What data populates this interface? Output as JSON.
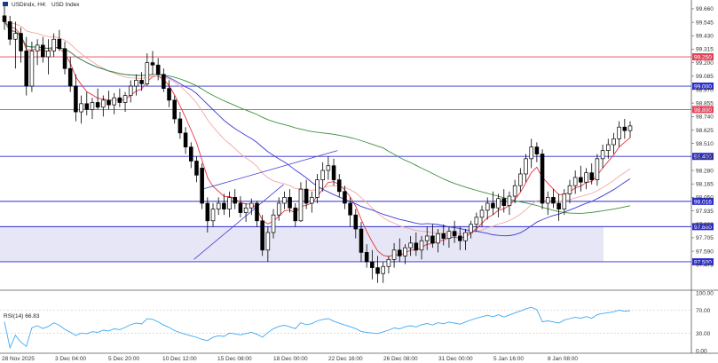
{
  "header": {
    "symbol": "USDindx, H4:",
    "description": "USD Index"
  },
  "chart_data": {
    "type": "candlestick",
    "symbol": "USDindx",
    "timeframe": "H4",
    "title": "USDindx, H4:  USD Index",
    "ylim": [
      97.28,
      99.72
    ],
    "y_ticks": [
      "99.660",
      "99.545",
      "99.430",
      "99.315",
      "99.200",
      "99.085",
      "98.970",
      "98.855",
      "98.740",
      "98.625",
      "98.510",
      "98.395",
      "98.280",
      "98.165",
      "98.050",
      "97.935",
      "97.820",
      "97.705",
      "97.590",
      "97.475"
    ],
    "x_ticks": [
      "28 Nov 2025",
      "3 Dec 04:00",
      "5 Dec 20:00",
      "10 Dec 12:00",
      "15 Dec 08:00",
      "18 Dec 00:00",
      "22 Dec 16:00",
      "26 Dec 08:00",
      "31 Dec 00:00",
      "5 Jan 16:00",
      "8 Jan 08:00"
    ],
    "horizontal_lines": [
      {
        "label": "99.250",
        "value": 99.25,
        "color": "#e0455a"
      },
      {
        "label": "99.000",
        "value": 99.0,
        "color": "#2d2dcc"
      },
      {
        "label": "98.800",
        "value": 98.8,
        "color": "#e0455a"
      },
      {
        "label": "98.400",
        "value": 98.4,
        "color": "#2d2dcc"
      },
      {
        "label": "98.016",
        "value": 98.016,
        "color": "#2d2dcc"
      },
      {
        "label": "97.800",
        "value": 97.8,
        "color": "#2d2dcc"
      },
      {
        "label": "97.500",
        "value": 97.5,
        "color": "#2d2dcc"
      }
    ],
    "zone": {
      "from": 97.5,
      "to": 97.8,
      "color": "#e6e6f7"
    },
    "candles": [
      {
        "o": 99.6,
        "h": 99.72,
        "l": 99.48,
        "c": 99.55
      },
      {
        "o": 99.55,
        "h": 99.6,
        "l": 99.35,
        "c": 99.4
      },
      {
        "o": 99.4,
        "h": 99.55,
        "l": 99.15,
        "c": 99.45
      },
      {
        "o": 99.45,
        "h": 99.5,
        "l": 99.2,
        "c": 99.3
      },
      {
        "o": 99.3,
        "h": 99.42,
        "l": 98.92,
        "c": 99.0
      },
      {
        "o": 99.0,
        "h": 99.38,
        "l": 98.95,
        "c": 99.3
      },
      {
        "o": 99.3,
        "h": 99.4,
        "l": 99.18,
        "c": 99.35
      },
      {
        "o": 99.35,
        "h": 99.42,
        "l": 99.2,
        "c": 99.25
      },
      {
        "o": 99.25,
        "h": 99.4,
        "l": 99.1,
        "c": 99.3
      },
      {
        "o": 99.3,
        "h": 99.45,
        "l": 99.25,
        "c": 99.4
      },
      {
        "o": 99.4,
        "h": 99.48,
        "l": 99.3,
        "c": 99.32
      },
      {
        "o": 99.32,
        "h": 99.38,
        "l": 99.1,
        "c": 99.15
      },
      {
        "o": 99.15,
        "h": 99.25,
        "l": 98.95,
        "c": 99.0
      },
      {
        "o": 99.0,
        "h": 99.1,
        "l": 98.7,
        "c": 98.78
      },
      {
        "o": 98.78,
        "h": 98.92,
        "l": 98.68,
        "c": 98.85
      },
      {
        "o": 98.85,
        "h": 98.95,
        "l": 98.75,
        "c": 98.8
      },
      {
        "o": 98.8,
        "h": 98.9,
        "l": 98.72,
        "c": 98.86
      },
      {
        "o": 98.86,
        "h": 98.98,
        "l": 98.8,
        "c": 98.82
      },
      {
        "o": 98.82,
        "h": 98.92,
        "l": 98.74,
        "c": 98.88
      },
      {
        "o": 98.88,
        "h": 98.96,
        "l": 98.8,
        "c": 98.84
      },
      {
        "o": 98.84,
        "h": 98.94,
        "l": 98.76,
        "c": 98.9
      },
      {
        "o": 98.9,
        "h": 98.98,
        "l": 98.82,
        "c": 98.86
      },
      {
        "o": 98.86,
        "h": 98.95,
        "l": 98.78,
        "c": 98.92
      },
      {
        "o": 98.92,
        "h": 99.05,
        "l": 98.86,
        "c": 99.0
      },
      {
        "o": 99.0,
        "h": 99.1,
        "l": 98.92,
        "c": 99.05
      },
      {
        "o": 99.05,
        "h": 99.12,
        "l": 98.96,
        "c": 99.02
      },
      {
        "o": 99.02,
        "h": 99.28,
        "l": 99.0,
        "c": 99.2
      },
      {
        "o": 99.2,
        "h": 99.3,
        "l": 99.1,
        "c": 99.18
      },
      {
        "o": 99.18,
        "h": 99.24,
        "l": 99.05,
        "c": 99.1
      },
      {
        "o": 99.1,
        "h": 99.15,
        "l": 98.95,
        "c": 98.98
      },
      {
        "o": 98.98,
        "h": 99.05,
        "l": 98.82,
        "c": 98.88
      },
      {
        "o": 98.88,
        "h": 98.92,
        "l": 98.68,
        "c": 98.72
      },
      {
        "o": 98.72,
        "h": 98.78,
        "l": 98.55,
        "c": 98.6
      },
      {
        "o": 98.6,
        "h": 98.65,
        "l": 98.42,
        "c": 98.48
      },
      {
        "o": 98.48,
        "h": 98.52,
        "l": 98.3,
        "c": 98.36
      },
      {
        "o": 98.36,
        "h": 98.4,
        "l": 98.18,
        "c": 98.24
      },
      {
        "o": 98.3,
        "h": 98.34,
        "l": 97.95,
        "c": 98.0
      },
      {
        "o": 98.0,
        "h": 98.05,
        "l": 97.75,
        "c": 97.85
      },
      {
        "o": 97.85,
        "h": 98.0,
        "l": 97.8,
        "c": 97.95
      },
      {
        "o": 97.95,
        "h": 98.05,
        "l": 97.9,
        "c": 98.0
      },
      {
        "o": 98.0,
        "h": 98.08,
        "l": 97.9,
        "c": 97.95
      },
      {
        "o": 97.95,
        "h": 98.1,
        "l": 97.88,
        "c": 98.05
      },
      {
        "o": 98.05,
        "h": 98.12,
        "l": 97.95,
        "c": 98.0
      },
      {
        "o": 98.0,
        "h": 98.06,
        "l": 97.88,
        "c": 97.92
      },
      {
        "o": 97.92,
        "h": 98.0,
        "l": 97.84,
        "c": 97.96
      },
      {
        "o": 97.96,
        "h": 98.04,
        "l": 97.9,
        "c": 98.0
      },
      {
        "o": 98.0,
        "h": 98.02,
        "l": 97.8,
        "c": 97.85
      },
      {
        "o": 97.85,
        "h": 97.9,
        "l": 97.55,
        "c": 97.6
      },
      {
        "o": 97.6,
        "h": 97.8,
        "l": 97.5,
        "c": 97.75
      },
      {
        "o": 97.75,
        "h": 97.95,
        "l": 97.7,
        "c": 97.9
      },
      {
        "o": 97.9,
        "h": 98.05,
        "l": 97.85,
        "c": 98.0
      },
      {
        "o": 98.0,
        "h": 98.1,
        "l": 97.95,
        "c": 98.05
      },
      {
        "o": 98.05,
        "h": 98.12,
        "l": 97.92,
        "c": 97.96
      },
      {
        "o": 97.96,
        "h": 98.0,
        "l": 97.8,
        "c": 97.85
      },
      {
        "o": 97.85,
        "h": 98.18,
        "l": 97.84,
        "c": 98.12
      },
      {
        "o": 98.12,
        "h": 98.2,
        "l": 97.95,
        "c": 98.0
      },
      {
        "o": 98.0,
        "h": 98.1,
        "l": 97.92,
        "c": 98.05
      },
      {
        "o": 98.05,
        "h": 98.25,
        "l": 98.0,
        "c": 98.2
      },
      {
        "o": 98.2,
        "h": 98.35,
        "l": 98.1,
        "c": 98.28
      },
      {
        "o": 98.28,
        "h": 98.4,
        "l": 98.2,
        "c": 98.32
      },
      {
        "o": 98.32,
        "h": 98.38,
        "l": 98.15,
        "c": 98.2
      },
      {
        "o": 98.2,
        "h": 98.25,
        "l": 98.05,
        "c": 98.1
      },
      {
        "o": 98.1,
        "h": 98.15,
        "l": 97.95,
        "c": 98.0
      },
      {
        "o": 98.0,
        "h": 98.05,
        "l": 97.8,
        "c": 97.9
      },
      {
        "o": 97.9,
        "h": 97.95,
        "l": 97.7,
        "c": 97.78
      },
      {
        "o": 97.78,
        "h": 97.84,
        "l": 97.5,
        "c": 97.58
      },
      {
        "o": 97.58,
        "h": 97.65,
        "l": 97.45,
        "c": 97.5
      },
      {
        "o": 97.5,
        "h": 97.6,
        "l": 97.35,
        "c": 97.45
      },
      {
        "o": 97.45,
        "h": 97.55,
        "l": 97.32,
        "c": 97.4
      },
      {
        "o": 97.4,
        "h": 97.5,
        "l": 97.32,
        "c": 97.46
      },
      {
        "o": 97.46,
        "h": 97.55,
        "l": 97.4,
        "c": 97.52
      },
      {
        "o": 97.52,
        "h": 97.66,
        "l": 97.45,
        "c": 97.6
      },
      {
        "o": 97.6,
        "h": 97.7,
        "l": 97.5,
        "c": 97.55
      },
      {
        "o": 97.55,
        "h": 97.65,
        "l": 97.48,
        "c": 97.62
      },
      {
        "o": 97.62,
        "h": 97.72,
        "l": 97.55,
        "c": 97.66
      },
      {
        "o": 97.66,
        "h": 97.75,
        "l": 97.55,
        "c": 97.6
      },
      {
        "o": 97.6,
        "h": 97.72,
        "l": 97.52,
        "c": 97.68
      },
      {
        "o": 97.68,
        "h": 97.8,
        "l": 97.6,
        "c": 97.72
      },
      {
        "o": 97.72,
        "h": 97.82,
        "l": 97.62,
        "c": 97.66
      },
      {
        "o": 97.66,
        "h": 97.78,
        "l": 97.58,
        "c": 97.74
      },
      {
        "o": 97.74,
        "h": 97.82,
        "l": 97.64,
        "c": 97.7
      },
      {
        "o": 97.7,
        "h": 97.8,
        "l": 97.62,
        "c": 97.76
      },
      {
        "o": 97.76,
        "h": 97.85,
        "l": 97.66,
        "c": 97.72
      },
      {
        "o": 97.72,
        "h": 97.8,
        "l": 97.6,
        "c": 97.68
      },
      {
        "o": 97.68,
        "h": 97.78,
        "l": 97.6,
        "c": 97.75
      },
      {
        "o": 97.75,
        "h": 97.85,
        "l": 97.7,
        "c": 97.82
      },
      {
        "o": 97.82,
        "h": 97.92,
        "l": 97.76,
        "c": 97.88
      },
      {
        "o": 97.88,
        "h": 97.98,
        "l": 97.8,
        "c": 97.94
      },
      {
        "o": 97.94,
        "h": 98.05,
        "l": 97.86,
        "c": 98.0
      },
      {
        "o": 98.0,
        "h": 98.1,
        "l": 97.9,
        "c": 97.96
      },
      {
        "o": 97.96,
        "h": 98.08,
        "l": 97.88,
        "c": 98.04
      },
      {
        "o": 98.04,
        "h": 98.12,
        "l": 97.92,
        "c": 97.98
      },
      {
        "o": 97.98,
        "h": 98.1,
        "l": 97.9,
        "c": 98.06
      },
      {
        "o": 98.06,
        "h": 98.2,
        "l": 98.0,
        "c": 98.15
      },
      {
        "o": 98.15,
        "h": 98.3,
        "l": 98.1,
        "c": 98.25
      },
      {
        "o": 98.25,
        "h": 98.42,
        "l": 98.18,
        "c": 98.38
      },
      {
        "o": 98.38,
        "h": 98.55,
        "l": 98.3,
        "c": 98.48
      },
      {
        "o": 98.48,
        "h": 98.52,
        "l": 98.35,
        "c": 98.42
      },
      {
        "o": 98.42,
        "h": 98.46,
        "l": 97.95,
        "c": 98.0
      },
      {
        "o": 98.0,
        "h": 98.1,
        "l": 97.9,
        "c": 98.05
      },
      {
        "o": 98.05,
        "h": 98.12,
        "l": 97.96,
        "c": 98.0
      },
      {
        "o": 98.0,
        "h": 98.08,
        "l": 97.85,
        "c": 97.95
      },
      {
        "o": 97.95,
        "h": 98.12,
        "l": 97.9,
        "c": 98.08
      },
      {
        "o": 98.08,
        "h": 98.2,
        "l": 98.0,
        "c": 98.15
      },
      {
        "o": 98.15,
        "h": 98.28,
        "l": 98.08,
        "c": 98.22
      },
      {
        "o": 98.22,
        "h": 98.32,
        "l": 98.1,
        "c": 98.18
      },
      {
        "o": 98.18,
        "h": 98.3,
        "l": 98.12,
        "c": 98.26
      },
      {
        "o": 98.26,
        "h": 98.34,
        "l": 98.16,
        "c": 98.2
      },
      {
        "o": 98.2,
        "h": 98.42,
        "l": 98.15,
        "c": 98.38
      },
      {
        "o": 98.38,
        "h": 98.5,
        "l": 98.3,
        "c": 98.45
      },
      {
        "o": 98.45,
        "h": 98.55,
        "l": 98.38,
        "c": 98.5
      },
      {
        "o": 98.5,
        "h": 98.6,
        "l": 98.42,
        "c": 98.55
      },
      {
        "o": 98.55,
        "h": 98.7,
        "l": 98.48,
        "c": 98.65
      },
      {
        "o": 98.65,
        "h": 98.72,
        "l": 98.55,
        "c": 98.62
      },
      {
        "o": 98.62,
        "h": 98.7,
        "l": 98.56,
        "c": 98.66
      }
    ],
    "indicator": {
      "name": "RSI(14)",
      "value": "66.83",
      "ylim": [
        0,
        100
      ],
      "y_ticks": [
        "100.00",
        "70.00",
        "30.00",
        "0.00"
      ],
      "levels": [
        70,
        30
      ],
      "color": "#3fa9f5"
    },
    "moving_averages": [
      {
        "color": "#e8343c"
      },
      {
        "color": "#f2a9a2"
      },
      {
        "color": "#3b3bd4"
      },
      {
        "color": "#3e8f3e"
      }
    ],
    "trend_lines": [
      {
        "x0": 0.27,
        "y0": 97.52,
        "x1": 0.395,
        "y1": 98.16
      },
      {
        "x0": 0.282,
        "y0": 98.12,
        "x1": 0.47,
        "y1": 98.45
      }
    ]
  }
}
